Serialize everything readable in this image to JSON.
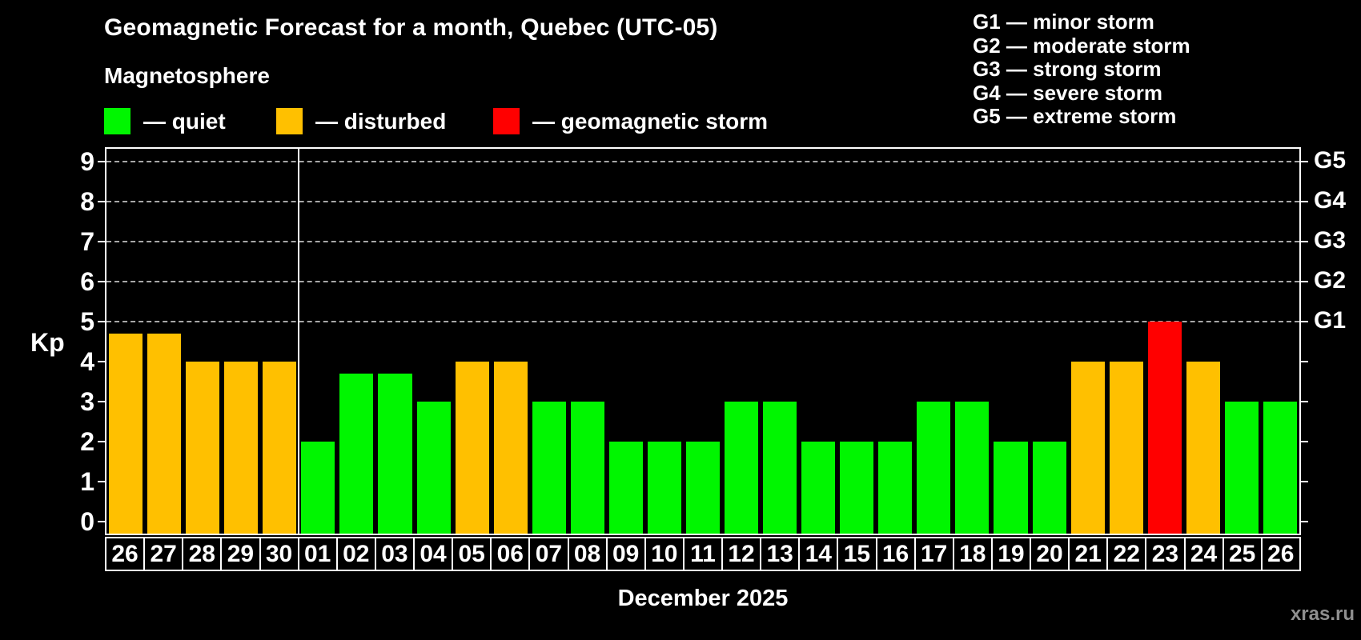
{
  "header": {
    "title": "Geomagnetic Forecast for a month, Quebec (UTC-05)",
    "subtitle": "Magnetosphere"
  },
  "colors": {
    "quiet": "#00f600",
    "disturbed": "#ffc000",
    "storm": "#ff0000",
    "grid": "#a8a8a8",
    "frame": "#ffffff",
    "watermark": "#8f8f8f"
  },
  "legend": {
    "items": [
      {
        "state": "quiet",
        "label": "— quiet"
      },
      {
        "state": "disturbed",
        "label": "— disturbed"
      },
      {
        "state": "storm",
        "label": "— geomagnetic storm"
      }
    ]
  },
  "gscale": {
    "lines": [
      "G1 — minor storm",
      "G2 — moderate storm",
      "G3 — strong storm",
      "G4 — severe storm",
      "G5 — extreme storm"
    ]
  },
  "axes": {
    "kp_label": "Kp",
    "y_ticks": [
      "0",
      "1",
      "2",
      "3",
      "4",
      "5",
      "6",
      "7",
      "8",
      "9"
    ],
    "right_labels": [
      {
        "label": "G1",
        "kp": 5
      },
      {
        "label": "G2",
        "kp": 6
      },
      {
        "label": "G3",
        "kp": 7
      },
      {
        "label": "G4",
        "kp": 8
      },
      {
        "label": "G5",
        "kp": 9
      }
    ]
  },
  "x_axis": {
    "month_label": "December 2025"
  },
  "watermark": "xras.ru",
  "chart_data": {
    "type": "bar",
    "title": "Geomagnetic Forecast for a month, Quebec (UTC-05)",
    "xlabel": "December 2025",
    "ylabel": "Kp",
    "ylim": [
      0,
      9
    ],
    "grid": "horizontal dashed lines at Kp 5,6,7,8,9 (G1–G5 storm levels)",
    "legend_position": "top",
    "month_separator_after_index": 4,
    "bars": [
      {
        "day": "26",
        "kp": 4.7,
        "state": "disturbed"
      },
      {
        "day": "27",
        "kp": 4.7,
        "state": "disturbed"
      },
      {
        "day": "28",
        "kp": 4.0,
        "state": "disturbed"
      },
      {
        "day": "29",
        "kp": 4.0,
        "state": "disturbed"
      },
      {
        "day": "30",
        "kp": 4.0,
        "state": "disturbed"
      },
      {
        "day": "01",
        "kp": 2.0,
        "state": "quiet"
      },
      {
        "day": "02",
        "kp": 3.7,
        "state": "quiet"
      },
      {
        "day": "03",
        "kp": 3.7,
        "state": "quiet"
      },
      {
        "day": "04",
        "kp": 3.0,
        "state": "quiet"
      },
      {
        "day": "05",
        "kp": 4.0,
        "state": "disturbed"
      },
      {
        "day": "06",
        "kp": 4.0,
        "state": "disturbed"
      },
      {
        "day": "07",
        "kp": 3.0,
        "state": "quiet"
      },
      {
        "day": "08",
        "kp": 3.0,
        "state": "quiet"
      },
      {
        "day": "09",
        "kp": 2.0,
        "state": "quiet"
      },
      {
        "day": "10",
        "kp": 2.0,
        "state": "quiet"
      },
      {
        "day": "11",
        "kp": 2.0,
        "state": "quiet"
      },
      {
        "day": "12",
        "kp": 3.0,
        "state": "quiet"
      },
      {
        "day": "13",
        "kp": 3.0,
        "state": "quiet"
      },
      {
        "day": "14",
        "kp": 2.0,
        "state": "quiet"
      },
      {
        "day": "15",
        "kp": 2.0,
        "state": "quiet"
      },
      {
        "day": "16",
        "kp": 2.0,
        "state": "quiet"
      },
      {
        "day": "17",
        "kp": 3.0,
        "state": "quiet"
      },
      {
        "day": "18",
        "kp": 3.0,
        "state": "quiet"
      },
      {
        "day": "19",
        "kp": 2.0,
        "state": "quiet"
      },
      {
        "day": "20",
        "kp": 2.0,
        "state": "quiet"
      },
      {
        "day": "21",
        "kp": 4.0,
        "state": "disturbed"
      },
      {
        "day": "22",
        "kp": 4.0,
        "state": "disturbed"
      },
      {
        "day": "23",
        "kp": 5.0,
        "state": "storm"
      },
      {
        "day": "24",
        "kp": 4.0,
        "state": "disturbed"
      },
      {
        "day": "25",
        "kp": 3.0,
        "state": "quiet"
      },
      {
        "day": "26",
        "kp": 3.0,
        "state": "quiet"
      }
    ]
  }
}
